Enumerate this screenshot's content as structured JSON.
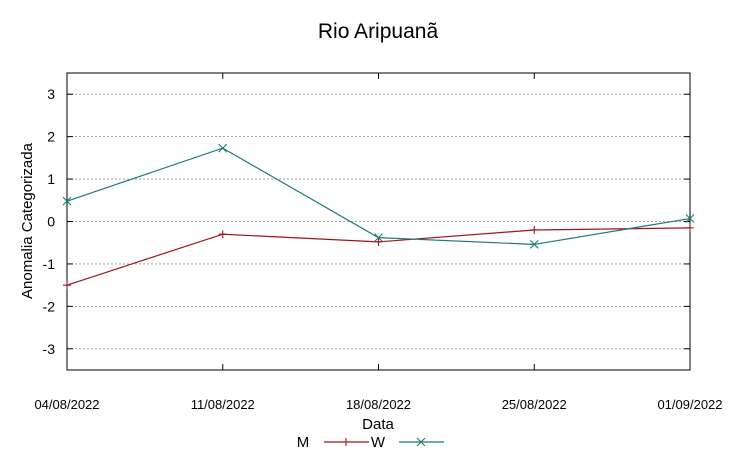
{
  "chart_data": {
    "type": "line",
    "title": "Rio Aripuanã",
    "xlabel": "Data",
    "ylabel": "Anomalia Categorizada",
    "categories": [
      "04/08/2022",
      "11/08/2022",
      "18/08/2022",
      "25/08/2022",
      "01/09/2022"
    ],
    "ylim": [
      -3.5,
      3.5
    ],
    "yticks": [
      -3,
      -2,
      -1,
      0,
      1,
      2,
      3
    ],
    "ytick_labels": [
      "-3",
      "-2",
      "-1",
      "0",
      "1",
      "2",
      "3"
    ],
    "grid": true,
    "legend_position": "bottom-center",
    "series": [
      {
        "name": "M",
        "color": "#a0141e",
        "marker": "plus",
        "values": [
          -1.5,
          -0.3,
          -0.48,
          -0.2,
          -0.15
        ]
      },
      {
        "name": "W",
        "color": "#1a7a7a",
        "marker": "cross",
        "values": [
          0.48,
          1.73,
          -0.38,
          -0.54,
          0.07
        ]
      }
    ]
  }
}
